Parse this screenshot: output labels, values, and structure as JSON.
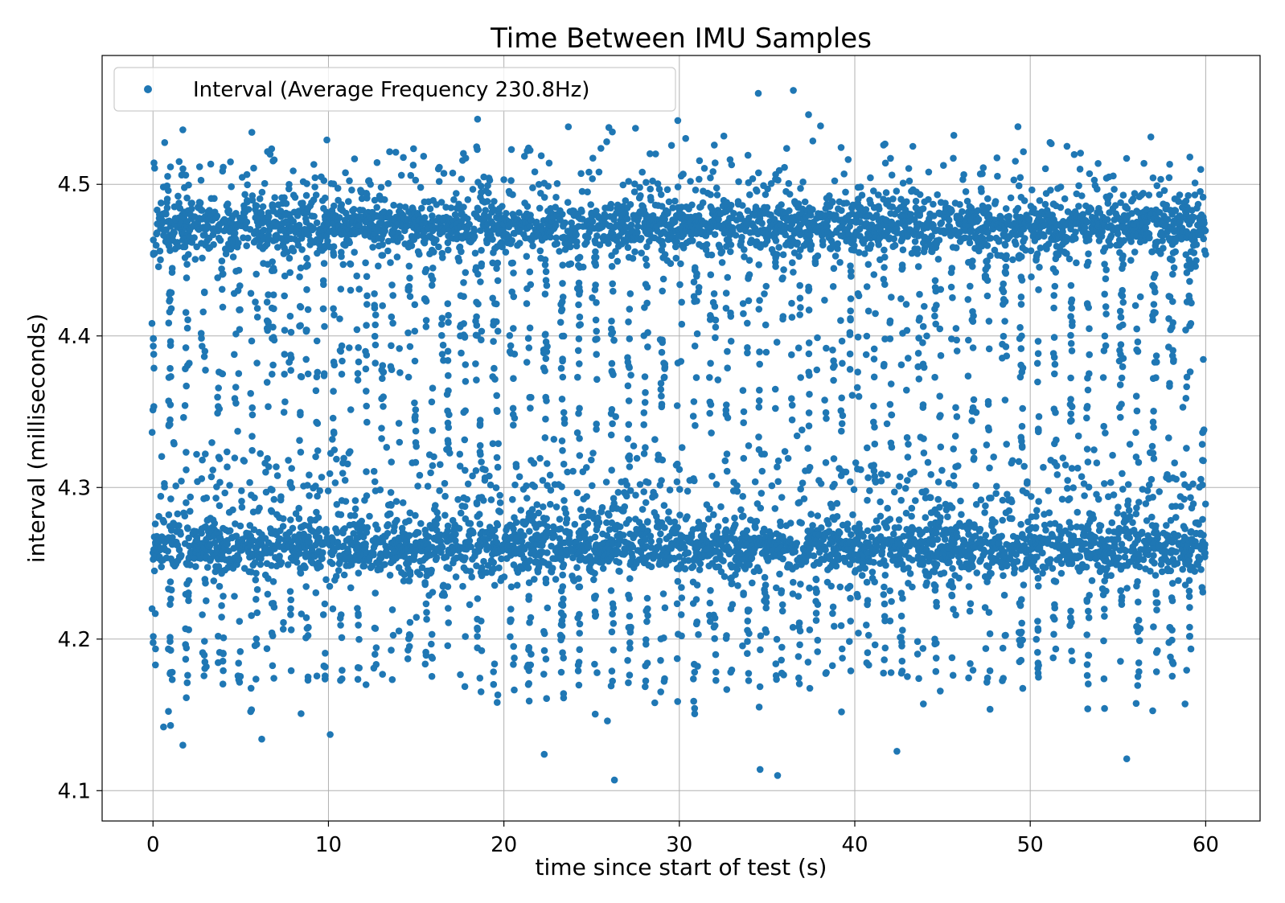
{
  "chart_data": {
    "type": "scatter",
    "title": "Time Between IMU Samples",
    "xlabel": "time since start of test (s)",
    "ylabel": "interval (milliseconds)",
    "xlim": [
      -2.9,
      63.1
    ],
    "ylim": [
      4.08,
      4.585
    ],
    "xticks": [
      0,
      10,
      20,
      30,
      40,
      50,
      60
    ],
    "yticks": [
      4.1,
      4.2,
      4.3,
      4.4,
      4.5
    ],
    "xtick_labels": [
      "0",
      "10",
      "20",
      "30",
      "40",
      "50",
      "60"
    ],
    "ytick_labels": [
      "4.1",
      "4.2",
      "4.3",
      "4.4",
      "4.5"
    ],
    "grid": true,
    "legend_position": "top-left",
    "series": [
      {
        "name": "Interval (Average Frequency 230.8Hz)",
        "color": "#1f77b4",
        "bands": [
          {
            "center": 4.472,
            "spread": 0.009,
            "share": 0.34
          },
          {
            "center": 4.49,
            "spread": 0.02,
            "share": 0.08
          },
          {
            "center": 4.26,
            "spread": 0.009,
            "share": 0.34
          },
          {
            "center": 4.29,
            "spread": 0.02,
            "share": 0.12
          }
        ],
        "x_range": [
          0,
          60
        ],
        "notable_points": [
          {
            "x": 18.5,
            "y": 4.543
          },
          {
            "x": 34.5,
            "y": 4.56
          },
          {
            "x": 36.5,
            "y": 4.562
          },
          {
            "x": 49.3,
            "y": 4.538
          },
          {
            "x": 1.7,
            "y": 4.536
          },
          {
            "x": 27.5,
            "y": 4.537
          },
          {
            "x": 1.7,
            "y": 4.13
          },
          {
            "x": 26.3,
            "y": 4.107
          },
          {
            "x": 35.6,
            "y": 4.11
          },
          {
            "x": 34.6,
            "y": 4.114
          },
          {
            "x": 55.5,
            "y": 4.121
          },
          {
            "x": 42.4,
            "y": 4.126
          },
          {
            "x": 22.3,
            "y": 4.124
          },
          {
            "x": 6.2,
            "y": 4.134
          },
          {
            "x": 10.1,
            "y": 4.137
          },
          {
            "x": 0.6,
            "y": 4.142
          },
          {
            "x": 1.0,
            "y": 4.143
          },
          {
            "x": 59.9,
            "y": 4.338
          },
          {
            "x": 58.7,
            "y": 4.353
          },
          {
            "x": 56.0,
            "y": 4.42
          },
          {
            "x": 44.1,
            "y": 4.4
          },
          {
            "x": 31.0,
            "y": 4.441
          },
          {
            "x": 32.2,
            "y": 4.371
          },
          {
            "x": 25.9,
            "y": 4.146
          },
          {
            "x": 23.4,
            "y": 4.164
          },
          {
            "x": 28.6,
            "y": 4.158
          }
        ]
      }
    ]
  }
}
